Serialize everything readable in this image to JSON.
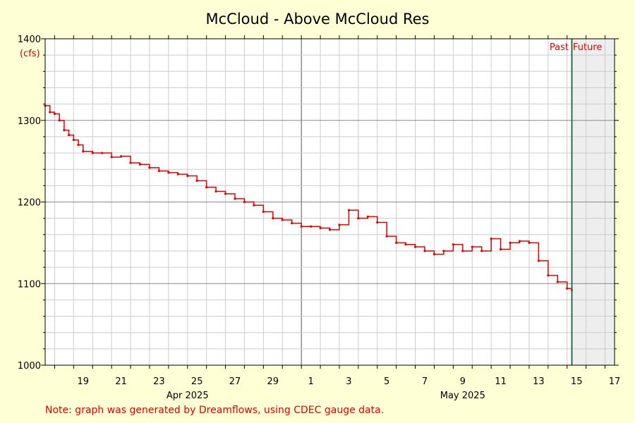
{
  "chart_data": {
    "type": "line",
    "title": "McCloud - Above McCloud Res",
    "ylabel": "(cfs)",
    "ylim": [
      1000,
      1400
    ],
    "y_ticks": [
      1000,
      1100,
      1200,
      1300,
      1400
    ],
    "x_range_days": [
      "2025-04-17 12:00",
      "2025-05-17 12:00"
    ],
    "x_tick_labels": [
      "19",
      "21",
      "23",
      "25",
      "27",
      "29",
      "1",
      "3",
      "5",
      "7",
      "9",
      "11",
      "13",
      "15",
      "17"
    ],
    "month_labels": [
      "Apr 2025",
      "May 2025"
    ],
    "grid": true,
    "past_label": "Past",
    "future_label": "Future",
    "now": "2025-05-15 06:00",
    "colors": {
      "line": "#e00000",
      "now_line": "#2e6b4f",
      "future_shade": "#eeeeee",
      "background": "#ffffd6"
    },
    "series": [
      {
        "x": [
          "2025-04-17 12:00",
          "2025-04-17 18:00",
          "2025-04-18 00:00",
          "2025-04-18 06:00",
          "2025-04-18 12:00",
          "2025-04-18 18:00",
          "2025-04-19 00:00",
          "2025-04-19 06:00",
          "2025-04-19 12:00",
          "2025-04-20 00:00",
          "2025-04-20 12:00",
          "2025-04-21 00:00",
          "2025-04-21 12:00",
          "2025-04-22 00:00",
          "2025-04-22 12:00",
          "2025-04-23 00:00",
          "2025-04-23 12:00",
          "2025-04-24 00:00",
          "2025-04-24 12:00",
          "2025-04-25 00:00",
          "2025-04-25 12:00",
          "2025-04-26 00:00",
          "2025-04-26 12:00",
          "2025-04-27 00:00",
          "2025-04-27 12:00",
          "2025-04-28 00:00",
          "2025-04-28 12:00",
          "2025-04-29 00:00",
          "2025-04-29 12:00",
          "2025-04-30 00:00",
          "2025-04-30 12:00",
          "2025-05-01 00:00",
          "2025-05-01 12:00",
          "2025-05-02 00:00",
          "2025-05-02 12:00",
          "2025-05-03 00:00",
          "2025-05-03 12:00",
          "2025-05-04 00:00",
          "2025-05-04 12:00",
          "2025-05-05 00:00",
          "2025-05-05 12:00",
          "2025-05-06 00:00",
          "2025-05-06 12:00",
          "2025-05-07 00:00",
          "2025-05-07 12:00",
          "2025-05-08 00:00",
          "2025-05-08 12:00",
          "2025-05-09 00:00",
          "2025-05-09 12:00",
          "2025-05-10 00:00",
          "2025-05-10 12:00",
          "2025-05-11 00:00",
          "2025-05-11 12:00",
          "2025-05-12 00:00",
          "2025-05-12 12:00",
          "2025-05-13 00:00",
          "2025-05-13 12:00",
          "2025-05-14 00:00",
          "2025-05-14 12:00",
          "2025-05-15 00:00",
          "2025-05-15 06:00"
        ],
        "y": [
          1318,
          1310,
          1308,
          1300,
          1288,
          1282,
          1276,
          1270,
          1262,
          1260,
          1260,
          1255,
          1256,
          1248,
          1246,
          1242,
          1238,
          1236,
          1234,
          1232,
          1226,
          1218,
          1213,
          1210,
          1204,
          1200,
          1196,
          1188,
          1180,
          1178,
          1174,
          1170,
          1170,
          1168,
          1166,
          1172,
          1190,
          1180,
          1182,
          1175,
          1158,
          1150,
          1148,
          1145,
          1140,
          1136,
          1140,
          1148,
          1140,
          1145,
          1140,
          1155,
          1142,
          1150,
          1152,
          1150,
          1128,
          1110,
          1102,
          1094,
          1092
        ]
      }
    ]
  },
  "footer": {
    "note": "Note: graph was generated by Dreamflows, using CDEC gauge data."
  }
}
